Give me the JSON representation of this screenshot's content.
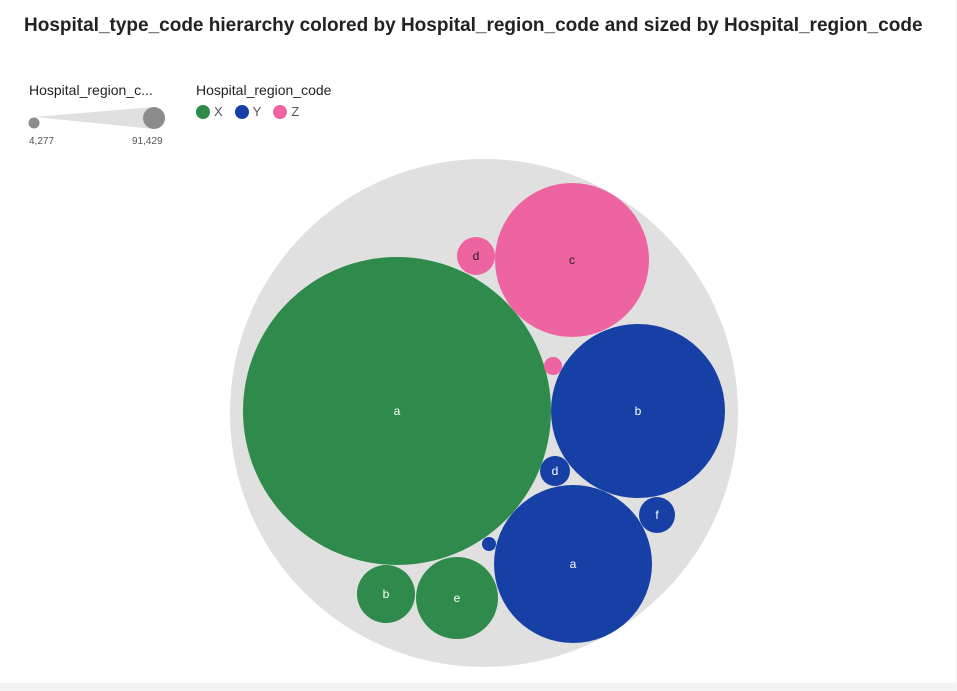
{
  "chart_data": {
    "type": "circle-packing",
    "title": "Hospital_type_code hierarchy colored by Hospital_region_code and sized by Hospital_region_code",
    "size_legend": {
      "title": "Hospital_region_c...",
      "min_label": "4,277",
      "max_label": "91,429"
    },
    "color_legend": {
      "title": "Hospital_region_code",
      "items": [
        {
          "label": "X",
          "color": "#2e8b4b"
        },
        {
          "label": "Y",
          "color": "#1640a5"
        },
        {
          "label": "Z",
          "color": "#ee64a0"
        }
      ]
    },
    "nodes": [
      {
        "label": "a",
        "region": "X",
        "color": "#2e8b4b",
        "text_color": "#ffffff"
      },
      {
        "label": "b",
        "region": "X",
        "color": "#2e8b4b",
        "text_color": "#ffffff"
      },
      {
        "label": "e",
        "region": "X",
        "color": "#2e8b4b",
        "text_color": "#ffffff"
      },
      {
        "label": "b",
        "region": "Y",
        "color": "#1640a5",
        "text_color": "#ffffff"
      },
      {
        "label": "a",
        "region": "Y",
        "color": "#1640a5",
        "text_color": "#ffffff"
      },
      {
        "label": "d",
        "region": "Y",
        "color": "#1640a5",
        "text_color": "#ffffff"
      },
      {
        "label": "f",
        "region": "Y",
        "color": "#1640a5",
        "text_color": "#ffffff"
      },
      {
        "label": "",
        "region": "Y",
        "color": "#1640a5",
        "text_color": "#ffffff"
      },
      {
        "label": "c",
        "region": "Z",
        "color": "#ee64a0",
        "text_color": "#222222"
      },
      {
        "label": "d",
        "region": "Z",
        "color": "#ee64a0",
        "text_color": "#222222"
      },
      {
        "label": "",
        "region": "Z",
        "color": "#ee64a0",
        "text_color": "#222222"
      }
    ]
  }
}
